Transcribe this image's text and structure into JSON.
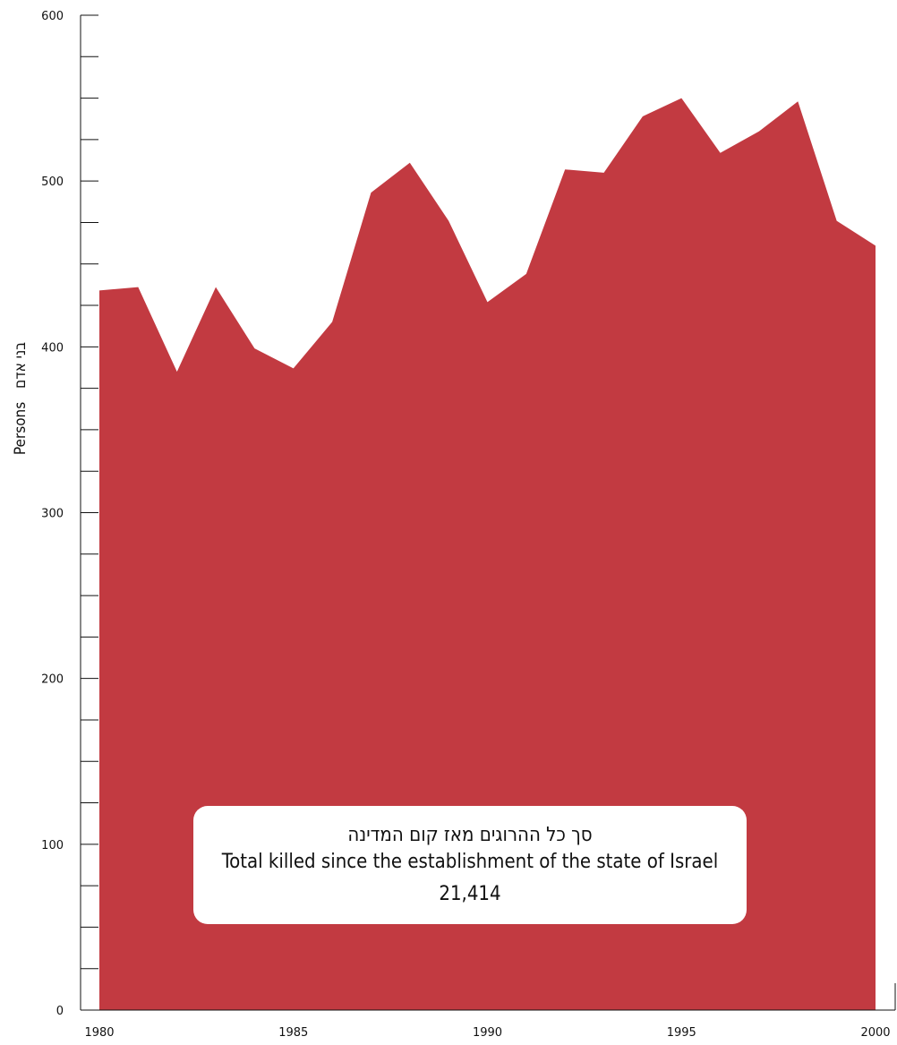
{
  "chart_data": {
    "type": "area",
    "x": [
      1980,
      1981,
      1982,
      1983,
      1984,
      1985,
      1986,
      1987,
      1988,
      1989,
      1990,
      1991,
      1992,
      1993,
      1994,
      1995,
      1996,
      1997,
      1998,
      1999,
      2000
    ],
    "series": [
      {
        "values": [
          434,
          436,
          385,
          436,
          399,
          387,
          415,
          493,
          511,
          476,
          427,
          444,
          507,
          505,
          539,
          550,
          517,
          530,
          548,
          476,
          461
        ]
      }
    ],
    "xticks": [
      "1980",
      "1985",
      "1990",
      "1995",
      "2000"
    ],
    "yticks": [
      "0",
      "100",
      "200",
      "300",
      "400",
      "500",
      "600"
    ],
    "xlim": [
      1980,
      2000
    ],
    "ylim": [
      0,
      600
    ],
    "ylabel_hebrew": "בני אדם",
    "ylabel": "Persons",
    "grid": false,
    "fill_color": "#c23a41",
    "annotation": {
      "hebrew": "סך כל ההרוגים מאז קום המדינה",
      "english": "Total killed since the establishment of the state of Israel",
      "value": "21,414"
    }
  }
}
